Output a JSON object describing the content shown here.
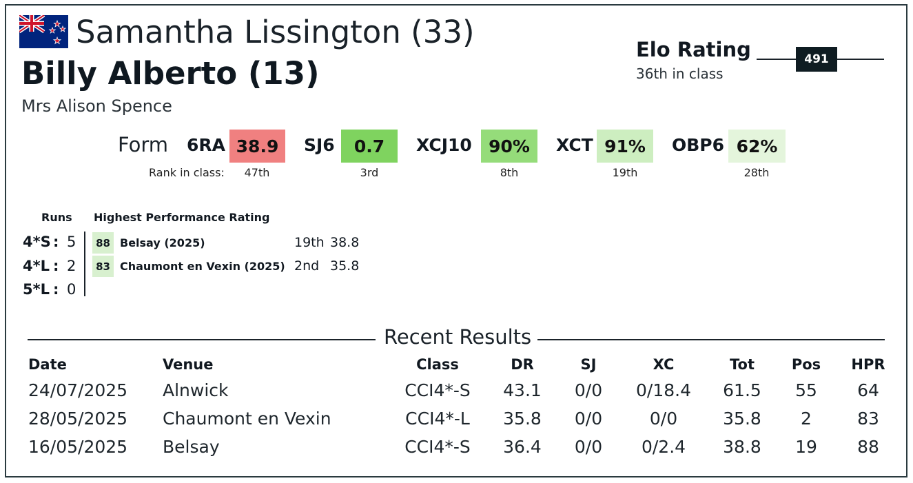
{
  "header": {
    "flag": "new-zealand-flag",
    "rider": "Samantha Lissington (33)",
    "horse": "Billy Alberto (13)",
    "owner": "Mrs Alison Spence"
  },
  "elo": {
    "title": "Elo Rating",
    "subtitle": "36th in class",
    "value": "491"
  },
  "form": {
    "label": "Form",
    "rank_label": "Rank in class:",
    "items": [
      {
        "code": "6RA",
        "value": "38.9",
        "rank": "47th",
        "color": "#f08080"
      },
      {
        "code": "SJ6",
        "value": "0.7",
        "rank": "3rd",
        "color": "#7fd35f"
      },
      {
        "code": "XCJ10",
        "value": "90%",
        "rank": "8th",
        "color": "#95dc7a"
      },
      {
        "code": "XCT",
        "value": "91%",
        "rank": "19th",
        "color": "#cdeec0"
      },
      {
        "code": "OBP6",
        "value": "62%",
        "rank": "28th",
        "color": "#e4f5dc"
      }
    ]
  },
  "runs": {
    "header": "Runs",
    "rows": [
      {
        "level": "4*S",
        "colon": ":",
        "count": "5"
      },
      {
        "level": "4*L",
        "colon": ":",
        "count": "2"
      },
      {
        "level": "5*L",
        "colon": ":",
        "count": "0"
      }
    ]
  },
  "hpr": {
    "header": "Highest Performance Rating",
    "rows": [
      {
        "score": "88",
        "event": "Belsay  (2025)",
        "position": "19th",
        "dressage": "38.8"
      },
      {
        "score": "83",
        "event": "Chaumont en Vexin  (2025)",
        "position": "2nd",
        "dressage": "35.8"
      }
    ]
  },
  "recent": {
    "title": "Recent Results",
    "columns": [
      "Date",
      "Venue",
      "Class",
      "DR",
      "SJ",
      "XC",
      "Tot",
      "Pos",
      "HPR"
    ],
    "rows": [
      [
        "24/07/2025",
        "Alnwick",
        "CCI4*-S",
        "43.1",
        "0/0",
        "0/18.4",
        "61.5",
        "55",
        "64"
      ],
      [
        "28/05/2025",
        "Chaumont en Vexin",
        "CCI4*-L",
        "35.8",
        "0/0",
        "0/0",
        "35.8",
        "2",
        "83"
      ],
      [
        "16/05/2025",
        "Belsay",
        "CCI4*-S",
        "36.4",
        "0/0",
        "0/2.4",
        "38.8",
        "19",
        "88"
      ]
    ]
  }
}
